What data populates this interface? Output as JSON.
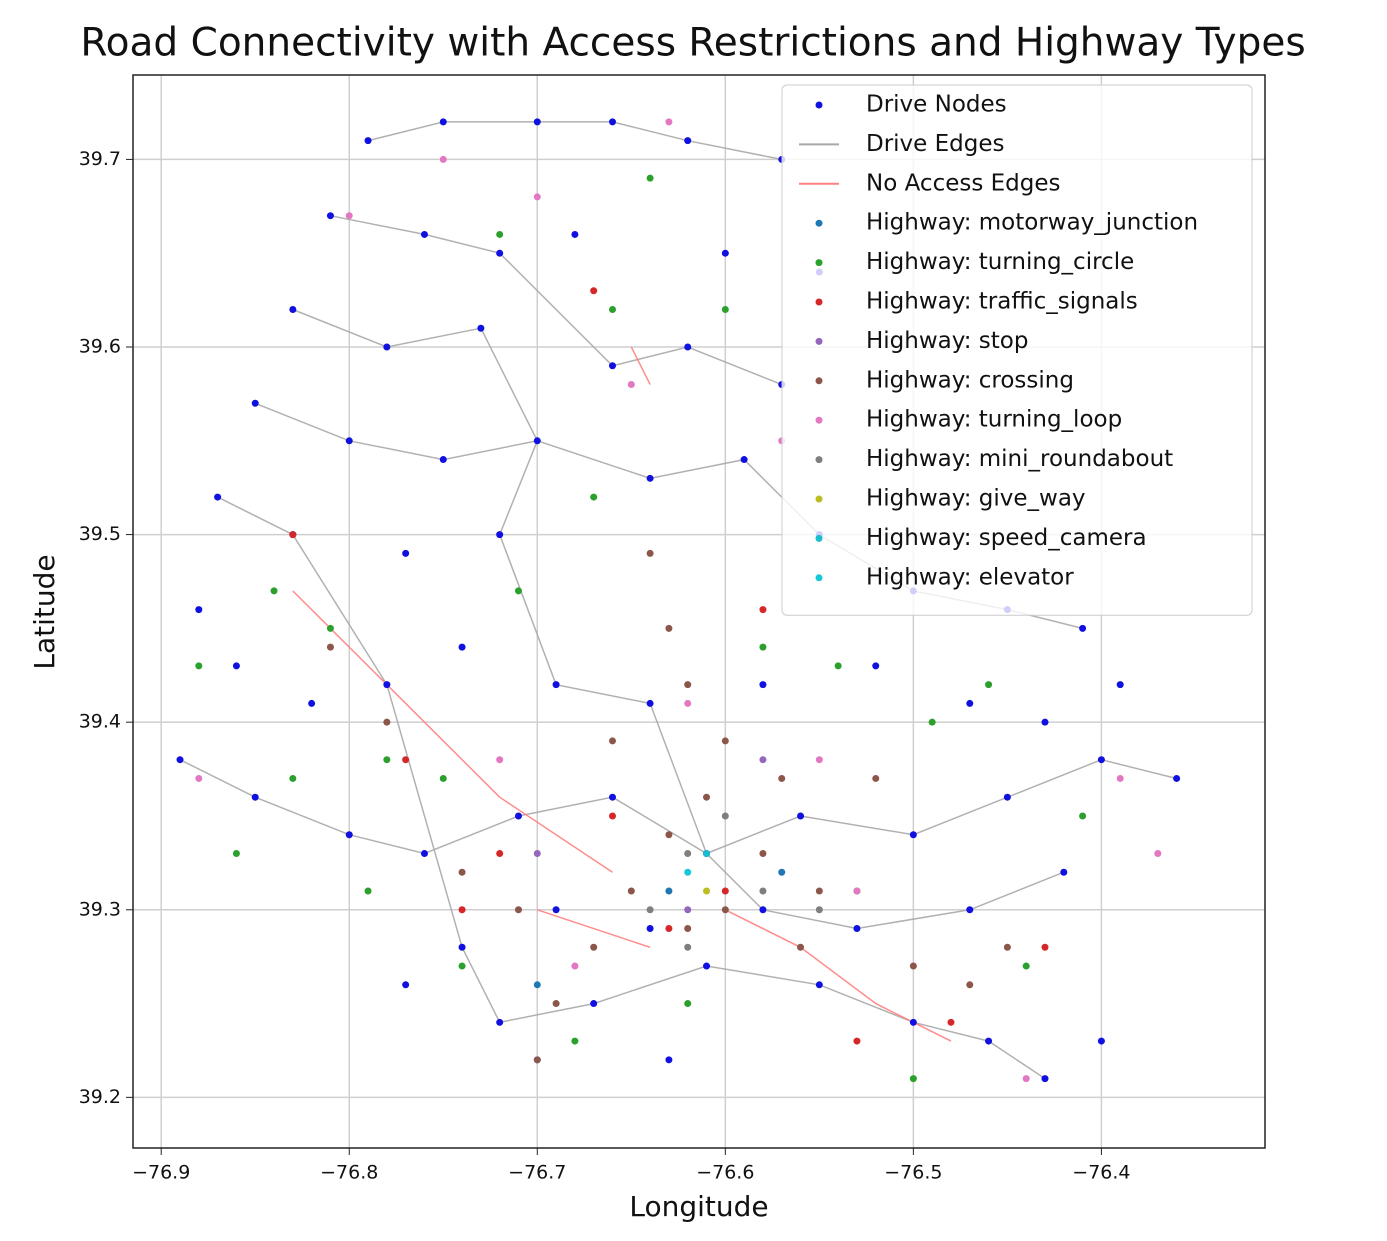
{
  "chart_data": {
    "type": "scatter",
    "title": "Road Connectivity with Access Restrictions and Highway Types",
    "x_label": "Longitude",
    "y_label": "Latitude",
    "xlim": [
      -76.915,
      -76.313
    ],
    "ylim": [
      39.173,
      39.745
    ],
    "xticks": [
      {
        "value": -76.9,
        "label": "−76.9"
      },
      {
        "value": -76.8,
        "label": "−76.8"
      },
      {
        "value": -76.7,
        "label": "−76.7"
      },
      {
        "value": -76.6,
        "label": "−76.6"
      },
      {
        "value": -76.5,
        "label": "−76.5"
      },
      {
        "value": -76.4,
        "label": "−76.4"
      }
    ],
    "yticks": [
      39.2,
      39.3,
      39.4,
      39.5,
      39.6,
      39.7
    ],
    "grid": true,
    "legend": "upper right",
    "series": [
      {
        "name": "Drive Nodes",
        "color": "#1010e0",
        "style": "point",
        "x": [
          -76.79,
          -76.75,
          -76.7,
          -76.66,
          -76.62,
          -76.57,
          -76.81,
          -76.76,
          -76.72,
          -76.68,
          -76.6,
          -76.55,
          -76.83,
          -76.78,
          -76.73,
          -76.66,
          -76.62,
          -76.57,
          -76.85,
          -76.8,
          -76.75,
          -76.7,
          -76.64,
          -76.59,
          -76.87,
          -76.83,
          -76.77,
          -76.72,
          -76.55,
          -76.5,
          -76.45,
          -76.41,
          -76.88,
          -76.86,
          -76.82,
          -76.78,
          -76.74,
          -76.69,
          -76.64,
          -76.58,
          -76.52,
          -76.47,
          -76.43,
          -76.39,
          -76.89,
          -76.85,
          -76.8,
          -76.76,
          -76.71,
          -76.66,
          -76.61,
          -76.56,
          -76.5,
          -76.45,
          -76.4,
          -76.36,
          -76.42,
          -76.47,
          -76.53,
          -76.58,
          -76.64,
          -76.69,
          -76.74,
          -76.77,
          -76.72,
          -76.67,
          -76.61,
          -76.55,
          -76.5,
          -76.46,
          -76.43,
          -76.4,
          -76.7,
          -76.63
        ],
        "y": [
          39.71,
          39.72,
          39.72,
          39.72,
          39.71,
          39.7,
          39.67,
          39.66,
          39.65,
          39.66,
          39.65,
          39.64,
          39.62,
          39.6,
          39.61,
          39.59,
          39.6,
          39.58,
          39.57,
          39.55,
          39.54,
          39.55,
          39.53,
          39.54,
          39.52,
          39.5,
          39.49,
          39.5,
          39.5,
          39.47,
          39.46,
          39.45,
          39.46,
          39.43,
          39.41,
          39.42,
          39.44,
          39.42,
          39.41,
          39.42,
          39.43,
          39.41,
          39.4,
          39.42,
          39.38,
          39.36,
          39.34,
          39.33,
          39.35,
          39.36,
          39.33,
          39.35,
          39.34,
          39.36,
          39.38,
          39.37,
          39.32,
          39.3,
          39.29,
          39.3,
          39.29,
          39.3,
          39.28,
          39.26,
          39.24,
          39.25,
          39.27,
          39.26,
          39.24,
          39.23,
          39.21,
          39.23,
          39.22,
          39.22
        ]
      },
      {
        "name": "Drive Edges",
        "color": "#a8a8a8",
        "style": "line",
        "x": [
          -76.79,
          -76.75,
          -76.7,
          -76.66,
          -76.62,
          -76.57,
          null,
          -76.81,
          -76.76,
          -76.72,
          -76.66,
          -76.62,
          -76.57,
          null,
          -76.85,
          -76.8,
          -76.75,
          -76.7,
          -76.64,
          -76.59,
          -76.55,
          -76.5,
          -76.45,
          -76.41,
          null,
          -76.89,
          -76.85,
          -76.8,
          -76.76,
          -76.71,
          -76.66,
          -76.61,
          -76.56,
          -76.5,
          -76.45,
          -76.4,
          -76.36,
          null,
          -76.83,
          -76.78,
          -76.73,
          -76.7,
          -76.72,
          -76.69,
          -76.64,
          -76.61,
          -76.58,
          -76.53,
          -76.47,
          -76.42,
          null,
          -76.87,
          -76.83,
          -76.78,
          -76.74,
          -76.72,
          -76.67,
          -76.61,
          -76.55,
          -76.5,
          -76.46,
          -76.43
        ],
        "y": [
          39.71,
          39.72,
          39.72,
          39.72,
          39.71,
          39.7,
          null,
          39.67,
          39.66,
          39.65,
          39.59,
          39.6,
          39.58,
          null,
          39.57,
          39.55,
          39.54,
          39.55,
          39.53,
          39.54,
          39.5,
          39.47,
          39.46,
          39.45,
          null,
          39.38,
          39.36,
          39.34,
          39.33,
          39.35,
          39.36,
          39.33,
          39.35,
          39.34,
          39.36,
          39.38,
          39.37,
          null,
          39.62,
          39.6,
          39.61,
          39.55,
          39.5,
          39.42,
          39.41,
          39.33,
          39.3,
          39.29,
          39.3,
          39.32,
          null,
          39.52,
          39.5,
          39.42,
          39.28,
          39.24,
          39.25,
          39.27,
          39.26,
          39.24,
          39.23,
          39.21
        ]
      },
      {
        "name": "No Access Edges",
        "color": "#ff8080",
        "style": "line",
        "x": [
          -76.83,
          -76.78,
          -76.72,
          -76.66,
          null,
          -76.6,
          -76.56,
          -76.52,
          -76.48,
          null,
          -76.7,
          -76.64,
          null,
          -76.65,
          -76.64
        ],
        "y": [
          39.47,
          39.42,
          39.36,
          39.32,
          null,
          39.3,
          39.28,
          39.25,
          39.23,
          null,
          39.3,
          39.28,
          null,
          39.6,
          39.58
        ]
      },
      {
        "name": "Highway: motorway_junction",
        "color": "#1f77b4",
        "style": "point",
        "x": [
          -76.63,
          -76.57,
          -76.7
        ],
        "y": [
          39.31,
          39.32,
          39.26
        ]
      },
      {
        "name": "Highway: turning_circle",
        "color": "#2ca02c",
        "style": "point",
        "x": [
          -76.88,
          -76.84,
          -76.81,
          -76.78,
          -76.75,
          -76.71,
          -76.67,
          -76.64,
          -76.6,
          -76.58,
          -76.54,
          -76.49,
          -76.46,
          -76.41,
          -76.44,
          -76.53,
          -76.62,
          -76.68,
          -76.74,
          -76.79,
          -76.83,
          -76.72,
          -76.66,
          -76.5,
          -76.86
        ],
        "y": [
          39.43,
          39.47,
          39.45,
          39.38,
          39.37,
          39.47,
          39.52,
          39.69,
          39.62,
          39.44,
          39.43,
          39.4,
          39.42,
          39.35,
          39.27,
          39.31,
          39.25,
          39.23,
          39.27,
          39.31,
          39.37,
          39.66,
          39.62,
          39.21,
          39.33
        ]
      },
      {
        "name": "Highway: traffic_signals",
        "color": "#d62728",
        "style": "point",
        "x": [
          -76.83,
          -76.77,
          -76.72,
          -76.66,
          -76.6,
          -76.58,
          -76.53,
          -76.48,
          -76.43,
          -76.67,
          -76.63,
          -76.74
        ],
        "y": [
          39.5,
          39.38,
          39.33,
          39.35,
          39.31,
          39.46,
          39.23,
          39.24,
          39.28,
          39.63,
          39.29,
          39.3
        ]
      },
      {
        "name": "Highway: stop",
        "color": "#9467bd",
        "style": "point",
        "x": [
          -76.62,
          -76.7,
          -76.58
        ],
        "y": [
          39.3,
          39.33,
          39.38
        ]
      },
      {
        "name": "Highway: crossing",
        "color": "#8c564b",
        "style": "point",
        "x": [
          -76.64,
          -76.63,
          -76.62,
          -76.6,
          -76.61,
          -76.63,
          -76.58,
          -76.65,
          -76.6,
          -76.55,
          -76.67,
          -76.71,
          -76.74,
          -76.78,
          -76.81,
          -76.56,
          -76.5,
          -76.47,
          -76.69,
          -76.52,
          -76.57,
          -76.66,
          -76.62,
          -76.45,
          -76.7
        ],
        "y": [
          39.49,
          39.45,
          39.42,
          39.39,
          39.36,
          39.34,
          39.33,
          39.31,
          39.3,
          39.31,
          39.28,
          39.3,
          39.32,
          39.4,
          39.44,
          39.28,
          39.27,
          39.26,
          39.25,
          39.37,
          39.37,
          39.39,
          39.29,
          39.28,
          39.22
        ]
      },
      {
        "name": "Highway: turning_loop",
        "color": "#e377c2",
        "style": "point",
        "x": [
          -76.88,
          -76.8,
          -76.75,
          -76.7,
          -76.63,
          -76.57,
          -76.65,
          -76.62,
          -76.53,
          -76.39,
          -76.37,
          -76.55,
          -76.68,
          -76.44,
          -76.72
        ],
        "y": [
          39.37,
          39.67,
          39.7,
          39.68,
          39.72,
          39.55,
          39.58,
          39.41,
          39.31,
          39.37,
          39.33,
          39.38,
          39.27,
          39.21,
          39.38
        ]
      },
      {
        "name": "Highway: mini_roundabout",
        "color": "#7f7f7f",
        "style": "point",
        "x": [
          -76.62,
          -76.6,
          -76.64,
          -76.58,
          -76.55,
          -76.62
        ],
        "y": [
          39.33,
          39.35,
          39.3,
          39.31,
          39.3,
          39.28
        ]
      },
      {
        "name": "Highway: give_way",
        "color": "#bcbd22",
        "style": "point",
        "x": [
          -76.61
        ],
        "y": [
          39.31
        ]
      },
      {
        "name": "Highway: speed_camera",
        "color": "#17becf",
        "style": "point",
        "x": [
          -76.61
        ],
        "y": [
          39.33
        ]
      },
      {
        "name": "Highway: elevator",
        "color": "#17c8d8",
        "style": "point",
        "x": [
          -76.62
        ],
        "y": [
          39.32
        ]
      }
    ]
  }
}
